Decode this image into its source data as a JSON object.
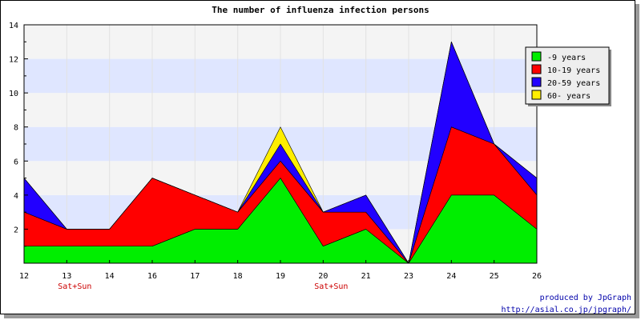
{
  "chart_data": {
    "type": "area",
    "stacked": true,
    "title": "The number of influenza infection persons",
    "x": [
      "12",
      "13",
      "14",
      "16",
      "17",
      "18",
      "19",
      "20",
      "21",
      "23",
      "24",
      "25",
      "26"
    ],
    "x_notes": [
      {
        "x": "13",
        "text": "Sat+Sun"
      },
      {
        "x": "20",
        "text": "Sat+Sun"
      }
    ],
    "ylim": [
      0,
      14
    ],
    "yticks": [
      2,
      4,
      6,
      8,
      10,
      12,
      14
    ],
    "series": [
      {
        "name": "-9 years",
        "color": "#00ee00",
        "values": [
          1,
          1,
          1,
          1,
          2,
          2,
          5,
          1,
          2,
          0,
          4,
          4,
          2
        ]
      },
      {
        "name": "10-19 years",
        "color": "#ff0000",
        "values": [
          2,
          1,
          1,
          4,
          2,
          1,
          1,
          2,
          1,
          0,
          4,
          3,
          2
        ]
      },
      {
        "name": "20-59 years",
        "color": "#2200ff",
        "values": [
          2,
          0,
          0,
          0,
          0,
          0,
          1,
          0,
          1,
          0,
          5,
          0,
          1
        ]
      },
      {
        "name": "60- years",
        "color": "#ffee00",
        "values": [
          0,
          0,
          0,
          0,
          0,
          0,
          1,
          0,
          0,
          0,
          0,
          0,
          0
        ]
      }
    ],
    "legend_position": "top-right",
    "background_bands": [
      "#f4f4f4",
      "#dfe6ff"
    ]
  },
  "footer": {
    "line1": "produced by JpGraph",
    "line2": "http://asial.co.jp/jpgraph/"
  }
}
